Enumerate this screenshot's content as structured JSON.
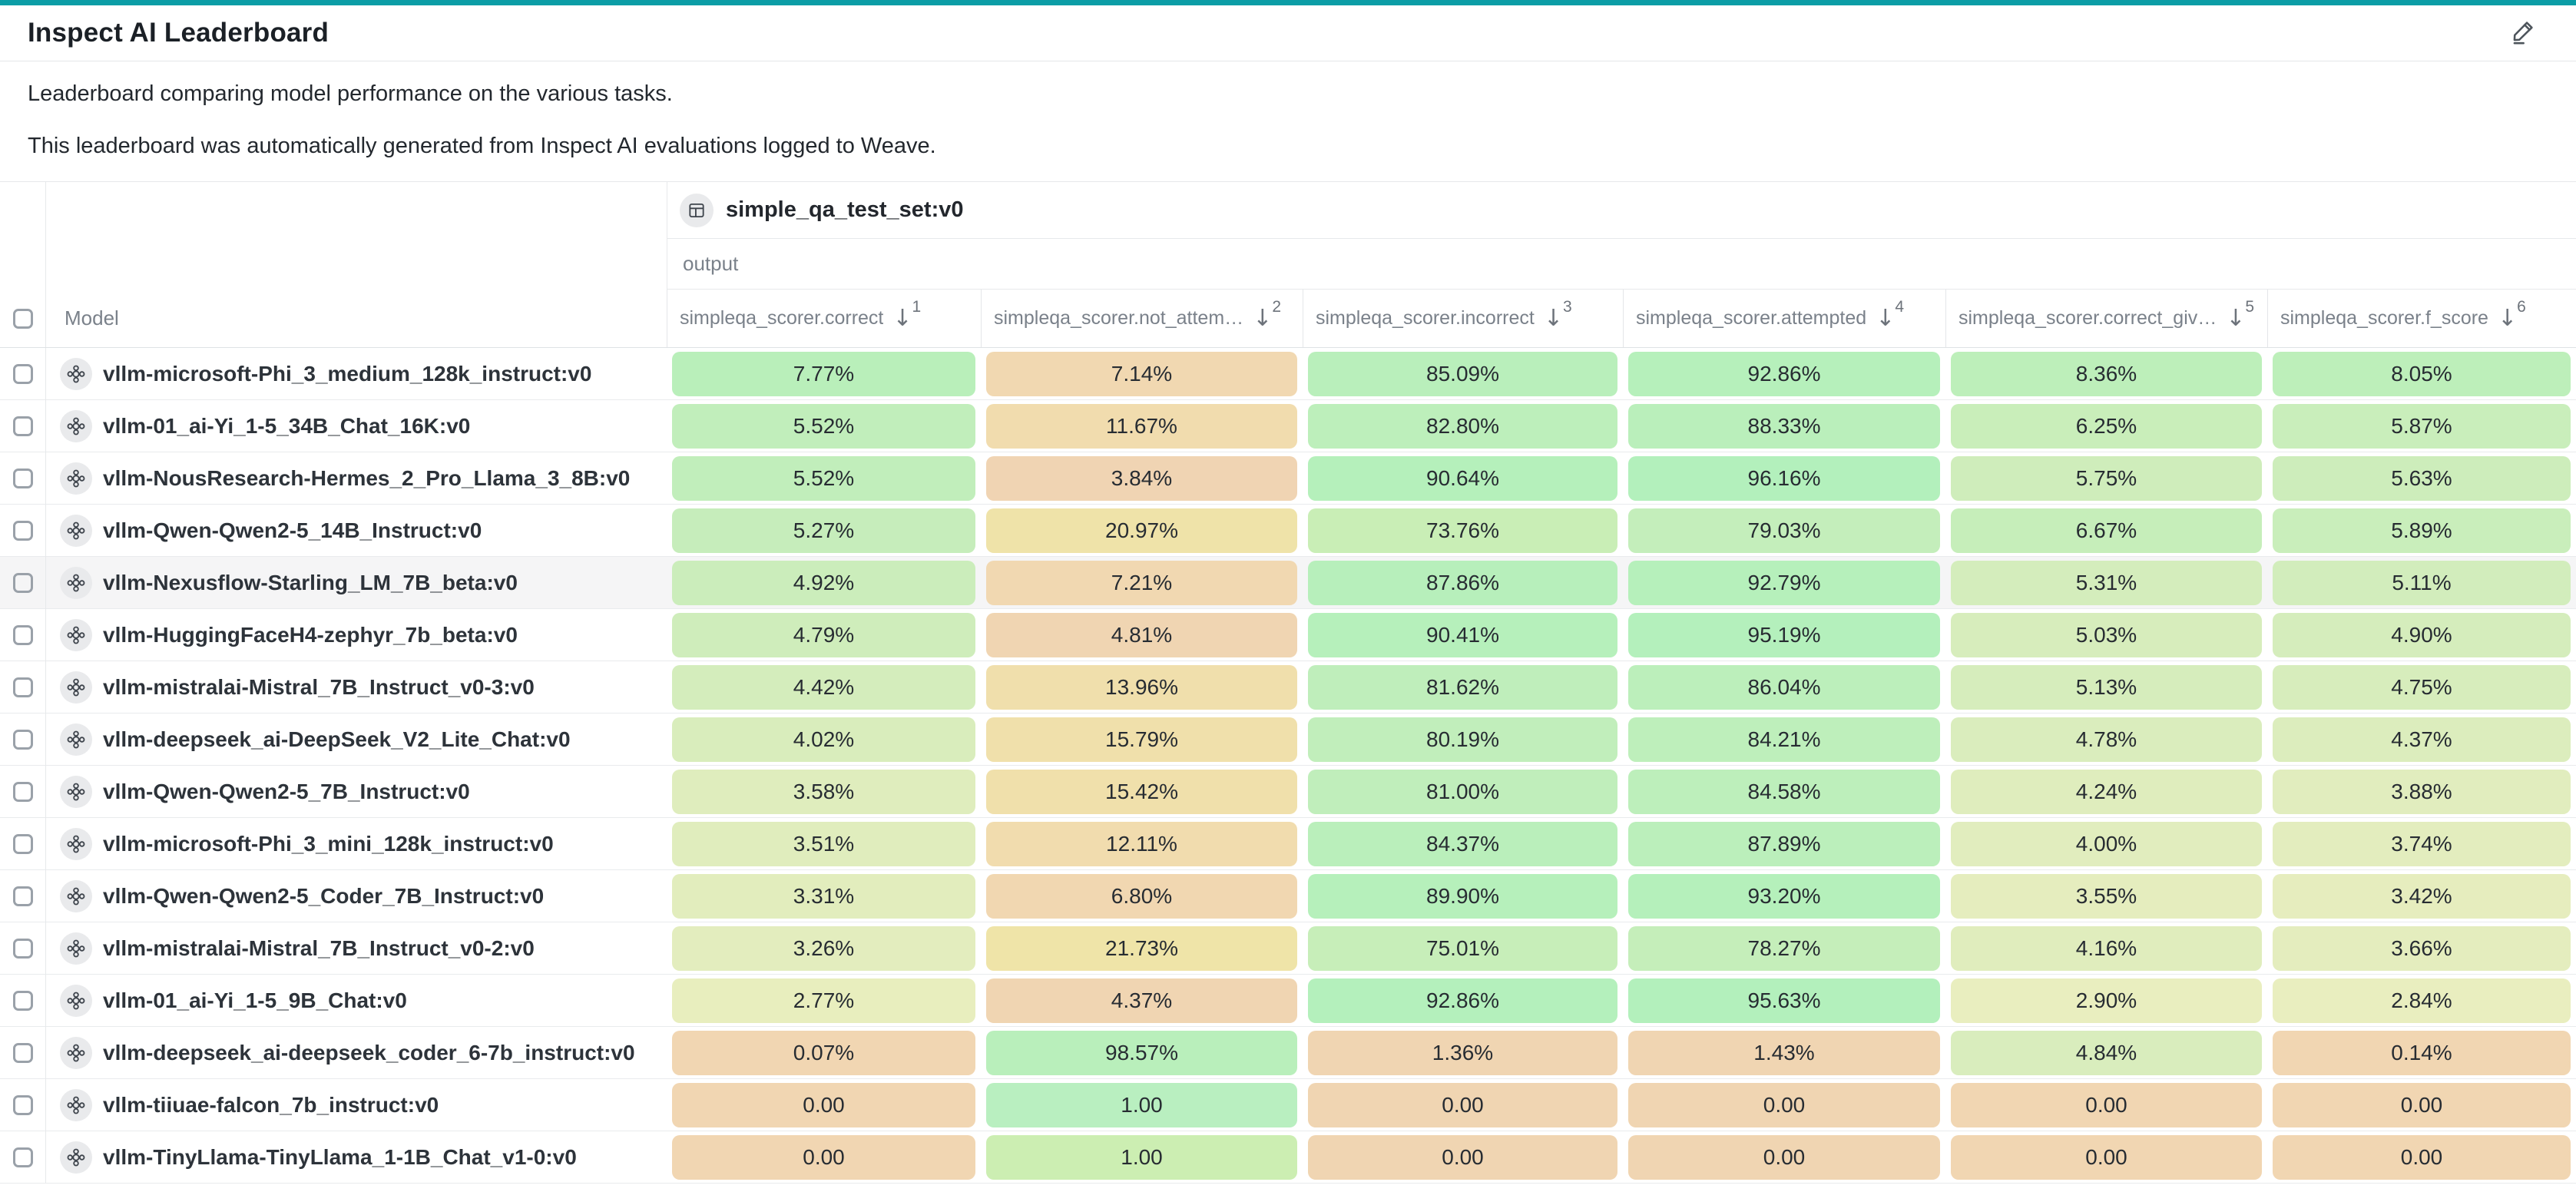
{
  "page": {
    "accent_bar_color": "#0b9da6",
    "title": "Inspect AI Leaderboard",
    "description_1": "Leaderboard comparing model performance on the various tasks.",
    "description_2": "This leaderboard was automatically generated from Inspect AI evaluations logged to Weave."
  },
  "icons": {
    "arrow_down": "↓"
  },
  "table": {
    "dataset_header": {
      "label": "simple_qa_test_set:v0"
    },
    "output_header": {
      "label": "output"
    },
    "model_column": {
      "label": "Model"
    },
    "columns": [
      {
        "label": "simpleqa_scorer.correct",
        "sort_priority": "1",
        "sort_direction": "desc"
      },
      {
        "label": "simpleqa_scorer.not_attem…",
        "sort_priority": "2",
        "sort_direction": "desc"
      },
      {
        "label": "simpleqa_scorer.incorrect",
        "sort_priority": "3",
        "sort_direction": "desc"
      },
      {
        "label": "simpleqa_scorer.attempted",
        "sort_priority": "4",
        "sort_direction": "desc"
      },
      {
        "label": "simpleqa_scorer.correct_giv…",
        "sort_priority": "5",
        "sort_direction": "desc"
      },
      {
        "label": "simpleqa_scorer.f_score",
        "sort_priority": "6",
        "sort_direction": "desc"
      }
    ],
    "rows": [
      {
        "model": "vllm-microsoft-Phi_3_medium_128k_instruct:v0",
        "selected": false,
        "highlighted": false,
        "cells": [
          {
            "value": "7.77%",
            "color": "#b9efba"
          },
          {
            "value": "7.14%",
            "color": "#f1d8b1"
          },
          {
            "value": "85.09%",
            "color": "#b9efbb"
          },
          {
            "value": "92.86%",
            "color": "#b6f0bb"
          },
          {
            "value": "8.36%",
            "color": "#bdefba"
          },
          {
            "value": "8.05%",
            "color": "#bdefba"
          }
        ]
      },
      {
        "model": "vllm-01_ai-Yi_1-5_34B_Chat_16K:v0",
        "selected": false,
        "highlighted": false,
        "cells": [
          {
            "value": "5.52%",
            "color": "#c1eebb"
          },
          {
            "value": "11.67%",
            "color": "#f1dcae"
          },
          {
            "value": "82.80%",
            "color": "#bdefbb"
          },
          {
            "value": "88.33%",
            "color": "#baefbb"
          },
          {
            "value": "6.25%",
            "color": "#c9eeba"
          },
          {
            "value": "5.87%",
            "color": "#c9eebb"
          }
        ]
      },
      {
        "model": "vllm-NousResearch-Hermes_2_Pro_Llama_3_8B:v0",
        "selected": false,
        "highlighted": false,
        "cells": [
          {
            "value": "5.52%",
            "color": "#c1eebb"
          },
          {
            "value": "3.84%",
            "color": "#f0d4b3"
          },
          {
            "value": "90.64%",
            "color": "#b5f0bb"
          },
          {
            "value": "96.16%",
            "color": "#b3f0bc"
          },
          {
            "value": "5.75%",
            "color": "#cfedbb"
          },
          {
            "value": "5.63%",
            "color": "#cdedbb"
          }
        ]
      },
      {
        "model": "vllm-Qwen-Qwen2-5_14B_Instruct:v0",
        "selected": false,
        "highlighted": false,
        "cells": [
          {
            "value": "5.27%",
            "color": "#c6edbb"
          },
          {
            "value": "20.97%",
            "color": "#efe3a9"
          },
          {
            "value": "73.76%",
            "color": "#c9eeb6"
          },
          {
            "value": "79.03%",
            "color": "#c4eebb"
          },
          {
            "value": "6.67%",
            "color": "#c6eeba"
          },
          {
            "value": "5.89%",
            "color": "#c9eebb"
          }
        ]
      },
      {
        "model": "vllm-Nexusflow-Starling_LM_7B_beta:v0",
        "selected": false,
        "highlighted": true,
        "cells": [
          {
            "value": "4.92%",
            "color": "#cbedbb"
          },
          {
            "value": "7.21%",
            "color": "#f1d8b1"
          },
          {
            "value": "87.86%",
            "color": "#b7efbb"
          },
          {
            "value": "92.79%",
            "color": "#b6f0bb"
          },
          {
            "value": "5.31%",
            "color": "#d4edbc"
          },
          {
            "value": "5.11%",
            "color": "#d2edbc"
          }
        ]
      },
      {
        "model": "vllm-HuggingFaceH4-zephyr_7b_beta:v0",
        "selected": false,
        "highlighted": false,
        "cells": [
          {
            "value": "4.79%",
            "color": "#cfedbb"
          },
          {
            "value": "4.81%",
            "color": "#f0d5b2"
          },
          {
            "value": "90.41%",
            "color": "#b6f0bb"
          },
          {
            "value": "95.19%",
            "color": "#b4f0bc"
          },
          {
            "value": "5.03%",
            "color": "#d7edbc"
          },
          {
            "value": "4.90%",
            "color": "#d5edbc"
          }
        ]
      },
      {
        "model": "vllm-mistralai-Mistral_7B_Instruct_v0-3:v0",
        "selected": false,
        "highlighted": false,
        "cells": [
          {
            "value": "4.42%",
            "color": "#d4edbc"
          },
          {
            "value": "13.96%",
            "color": "#f0dfac"
          },
          {
            "value": "81.62%",
            "color": "#bfeebb"
          },
          {
            "value": "86.04%",
            "color": "#bcefbb"
          },
          {
            "value": "5.13%",
            "color": "#d6edbc"
          },
          {
            "value": "4.75%",
            "color": "#d7edbc"
          }
        ]
      },
      {
        "model": "vllm-deepseek_ai-DeepSeek_V2_Lite_Chat:v0",
        "selected": false,
        "highlighted": false,
        "cells": [
          {
            "value": "4.02%",
            "color": "#d9edbc"
          },
          {
            "value": "15.79%",
            "color": "#f0e0ab"
          },
          {
            "value": "80.19%",
            "color": "#c1eebb"
          },
          {
            "value": "84.21%",
            "color": "#beefbb"
          },
          {
            "value": "4.78%",
            "color": "#daedbd"
          },
          {
            "value": "4.37%",
            "color": "#dcedbd"
          }
        ]
      },
      {
        "model": "vllm-Qwen-Qwen2-5_7B_Instruct:v0",
        "selected": false,
        "highlighted": false,
        "cells": [
          {
            "value": "3.58%",
            "color": "#dfedbd"
          },
          {
            "value": "15.42%",
            "color": "#f0e0ab"
          },
          {
            "value": "81.00%",
            "color": "#c0eebb"
          },
          {
            "value": "84.58%",
            "color": "#bdefbb"
          },
          {
            "value": "4.24%",
            "color": "#dfedbd"
          },
          {
            "value": "3.88%",
            "color": "#e1edbe"
          }
        ]
      },
      {
        "model": "vllm-microsoft-Phi_3_mini_128k_instruct:v0",
        "selected": false,
        "highlighted": false,
        "cells": [
          {
            "value": "3.51%",
            "color": "#e0edbd"
          },
          {
            "value": "12.11%",
            "color": "#f1dcae"
          },
          {
            "value": "84.37%",
            "color": "#baefbb"
          },
          {
            "value": "87.89%",
            "color": "#bbefbb"
          },
          {
            "value": "4.00%",
            "color": "#e1edbe"
          },
          {
            "value": "3.74%",
            "color": "#e3edbe"
          }
        ]
      },
      {
        "model": "vllm-Qwen-Qwen2-5_Coder_7B_Instruct:v0",
        "selected": false,
        "highlighted": false,
        "cells": [
          {
            "value": "3.31%",
            "color": "#e2edbd"
          },
          {
            "value": "6.80%",
            "color": "#f1d7b1"
          },
          {
            "value": "89.90%",
            "color": "#b6f0bb"
          },
          {
            "value": "93.20%",
            "color": "#b5f0bb"
          },
          {
            "value": "3.55%",
            "color": "#e5edbe"
          },
          {
            "value": "3.42%",
            "color": "#e6edbe"
          }
        ]
      },
      {
        "model": "vllm-mistralai-Mistral_7B_Instruct_v0-2:v0",
        "selected": false,
        "highlighted": false,
        "cells": [
          {
            "value": "3.26%",
            "color": "#e3edbe"
          },
          {
            "value": "21.73%",
            "color": "#efe4a8"
          },
          {
            "value": "75.01%",
            "color": "#c7eeb9"
          },
          {
            "value": "78.27%",
            "color": "#c5eeba"
          },
          {
            "value": "4.16%",
            "color": "#e0edbd"
          },
          {
            "value": "3.66%",
            "color": "#e4edbe"
          }
        ]
      },
      {
        "model": "vllm-01_ai-Yi_1-5_9B_Chat:v0",
        "selected": false,
        "highlighted": false,
        "cells": [
          {
            "value": "2.77%",
            "color": "#e8eebe"
          },
          {
            "value": "4.37%",
            "color": "#f0d5b2"
          },
          {
            "value": "92.86%",
            "color": "#b4f0bc"
          },
          {
            "value": "95.63%",
            "color": "#b3f0bc"
          },
          {
            "value": "2.90%",
            "color": "#e9eebf"
          },
          {
            "value": "2.84%",
            "color": "#e9eebf"
          }
        ]
      },
      {
        "model": "vllm-deepseek_ai-deepseek_coder_6-7b_instruct:v0",
        "selected": false,
        "highlighted": false,
        "cells": [
          {
            "value": "0.07%",
            "color": "#f1d6b2"
          },
          {
            "value": "98.57%",
            "color": "#b9efbb"
          },
          {
            "value": "1.36%",
            "color": "#f0d5b2"
          },
          {
            "value": "1.43%",
            "color": "#f0d5b2"
          },
          {
            "value": "4.84%",
            "color": "#d9edbd"
          },
          {
            "value": "0.14%",
            "color": "#f1d6b2"
          }
        ]
      },
      {
        "model": "vllm-tiiuae-falcon_7b_instruct:v0",
        "selected": false,
        "highlighted": false,
        "cells": [
          {
            "value": "0.00",
            "color": "#f1d6b2"
          },
          {
            "value": "1.00",
            "color": "#b9efc0"
          },
          {
            "value": "0.00",
            "color": "#f0d5b2"
          },
          {
            "value": "0.00",
            "color": "#f0d5b2"
          },
          {
            "value": "0.00",
            "color": "#f1d6b2"
          },
          {
            "value": "0.00",
            "color": "#f1d6b2"
          }
        ]
      },
      {
        "model": "vllm-TinyLlama-TinyLlama_1-1B_Chat_v1-0:v0",
        "selected": false,
        "highlighted": false,
        "cells": [
          {
            "value": "0.00",
            "color": "#f1d6b2"
          },
          {
            "value": "1.00",
            "color": "#cceeb2"
          },
          {
            "value": "0.00",
            "color": "#f0d5b2"
          },
          {
            "value": "0.00",
            "color": "#f0d5b2"
          },
          {
            "value": "0.00",
            "color": "#f1d6b2"
          },
          {
            "value": "0.00",
            "color": "#f1d6b2"
          }
        ]
      }
    ]
  }
}
